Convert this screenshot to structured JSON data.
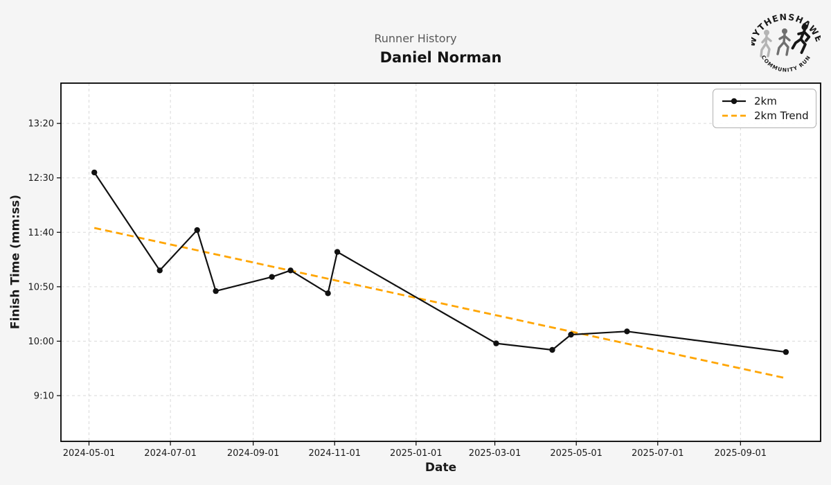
{
  "page": {
    "background": "#f5f5f5"
  },
  "header": {
    "suptitle": "Runner History",
    "title": "Daniel Norman"
  },
  "logo": {
    "top_text": "WYTHENSHAWE",
    "bottom_text": "COMMUNITY RUN",
    "runner_colors": [
      "#b4b4b4",
      "#6f6f6f",
      "#161616"
    ]
  },
  "chart_data": {
    "type": "line",
    "suptitle": "Runner History",
    "title": "Daniel Norman",
    "xlabel": "Date",
    "ylabel": "Finish Time (mm:ss)",
    "grid": true,
    "legend_position": "upper right",
    "xlim": [
      "2024-04-10",
      "2025-10-31"
    ],
    "ylim_seconds": [
      508,
      837
    ],
    "x_ticks": [
      "2024-05-01",
      "2024-07-01",
      "2024-09-01",
      "2024-11-01",
      "2025-01-01",
      "2025-03-01",
      "2025-05-01",
      "2025-07-01",
      "2025-09-01"
    ],
    "y_ticks": [
      "13:20",
      "12:30",
      "11:40",
      "10:50",
      "10:00",
      "9:10"
    ],
    "series": [
      {
        "name": "2km",
        "color": "#111111",
        "marker": "circle",
        "dash": null,
        "points": [
          {
            "date": "2024-05-05",
            "time": "12:35"
          },
          {
            "date": "2024-06-23",
            "time": "11:05"
          },
          {
            "date": "2024-07-21",
            "time": "11:42"
          },
          {
            "date": "2024-08-04",
            "time": "10:46"
          },
          {
            "date": "2024-09-15",
            "time": "10:59"
          },
          {
            "date": "2024-09-29",
            "time": "11:05"
          },
          {
            "date": "2024-10-27",
            "time": "10:44"
          },
          {
            "date": "2024-11-03",
            "time": "11:22"
          },
          {
            "date": "2025-03-02",
            "time": "9:58"
          },
          {
            "date": "2025-04-13",
            "time": "9:52"
          },
          {
            "date": "2025-04-27",
            "time": "10:06"
          },
          {
            "date": "2025-06-08",
            "time": "10:09"
          },
          {
            "date": "2025-10-05",
            "time": "9:50"
          }
        ]
      },
      {
        "name": "2km Trend",
        "color": "#FFA500",
        "marker": null,
        "dash": "10 6",
        "points": [
          {
            "date": "2024-05-05",
            "time": "11:44"
          },
          {
            "date": "2025-10-05",
            "time": "9:26"
          }
        ]
      }
    ]
  }
}
